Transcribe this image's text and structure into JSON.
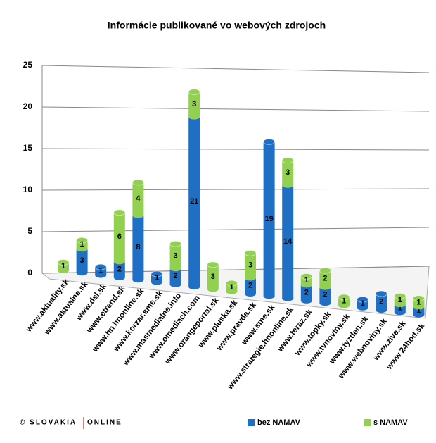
{
  "chart_data": {
    "type": "bar",
    "stacked": true,
    "title": "Informácie publikované vo webových zdrojoch",
    "categories": [
      "www.aktuality.sk",
      "www.aktualne.sk",
      "www.dsl.sk",
      "www.etrend.sk",
      "www.hn.hnonline.sk",
      "www.korzar.sme.sk",
      "www.masmedialne.info",
      "www.omediach.com",
      "www.orangeportal.sk",
      "www.pluska.sk",
      "www.pravda.sk",
      "www.sme.sk",
      "www.strategie.hnonline.sk",
      "www.teraz.sk",
      "www.topky.sk",
      "www.tvnoviny.sk",
      "www.tyzden.sk",
      "www.webnoviny.sk",
      "www.zive.sk",
      "www.24hod.sk"
    ],
    "series": [
      {
        "name": "bez NAMAV",
        "color": "#1f6fc5",
        "values": [
          null,
          3,
          1,
          2,
          8,
          1,
          2,
          21,
          null,
          null,
          2,
          19,
          14,
          2,
          2,
          null,
          1,
          2,
          1,
          1
        ]
      },
      {
        "name": "s NAMAV",
        "color": "#92d050",
        "values": [
          1,
          1,
          null,
          6,
          4,
          null,
          3,
          3,
          3,
          1,
          3,
          null,
          3,
          1,
          2,
          1,
          null,
          null,
          1,
          1
        ]
      }
    ],
    "ylim": [
      0,
      25
    ],
    "yticks": [
      0,
      5,
      10,
      15,
      20,
      25
    ],
    "grid": true,
    "legend": "bottom"
  },
  "logo": [
    "© SLOVAKIA",
    "ONLINE"
  ]
}
